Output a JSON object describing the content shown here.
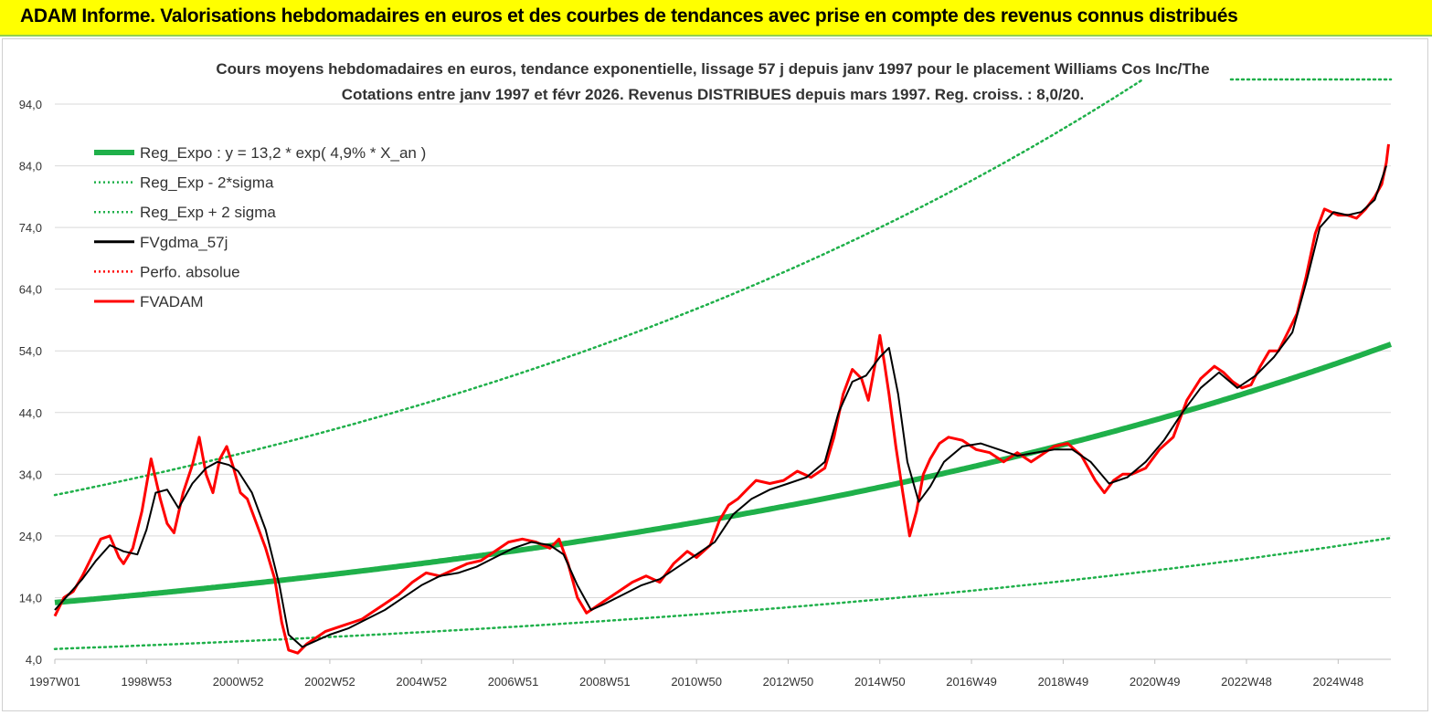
{
  "header": {
    "title": "ADAM Informe. Valorisations hebdomadaires en euros et des courbes de tendances avec prise en compte des revenus connus distribués"
  },
  "colors": {
    "header_bg": "#ffff00",
    "header_border": "#92d050",
    "reg_green": "#1fb04a",
    "smooth_black": "#000000",
    "price_red": "#ff0000",
    "grid": "#d9d9d9"
  },
  "chart_data": {
    "type": "line",
    "title_lines": [
      "Cours moyens hebdomadaires en euros, tendance exponentielle, lissage 57 j depuis janv 1997 pour le placement Williams Cos Inc/The",
      "Cotations entre janv 1997 et févr 2026. Revenus DISTRIBUES depuis mars 1997. Reg. croiss. : 8,0/20."
    ],
    "xlabel": "",
    "ylabel": "",
    "x_range": [
      1997.0,
      2026.15
    ],
    "ylim": [
      4.0,
      98.0
    ],
    "y_ticks": [
      "4,0",
      "14,0",
      "24,0",
      "34,0",
      "44,0",
      "54,0",
      "64,0",
      "74,0",
      "84,0",
      "94,0"
    ],
    "y_tick_values": [
      4,
      14,
      24,
      34,
      44,
      54,
      64,
      74,
      84,
      94
    ],
    "x_ticks": [
      "1997W01",
      "1998W53",
      "2000W52",
      "2002W52",
      "2004W52",
      "2006W51",
      "2008W51",
      "2010W50",
      "2012W50",
      "2014W50",
      "2016W49",
      "2018W49",
      "2020W49",
      "2022W48",
      "2024W48"
    ],
    "x_tick_values": [
      1997.0,
      1999.0,
      2001.0,
      2003.0,
      2005.0,
      2007.0,
      2009.0,
      2011.0,
      2013.0,
      2015.0,
      2017.0,
      2019.0,
      2021.0,
      2023.0,
      2025.0
    ],
    "grid": "horizontal",
    "legend_position": "top-left",
    "legend": [
      {
        "label": "Reg_Expo : y = 13,2 * exp( 4,9% *  X_an )",
        "color": "#1fb04a",
        "style": "thick"
      },
      {
        "label": "Reg_Exp - 2*sigma",
        "color": "#1fb04a",
        "style": "dotted"
      },
      {
        "label": "Reg_Exp + 2 sigma",
        "color": "#1fb04a",
        "style": "dotted"
      },
      {
        "label": "FVgdma_57j",
        "color": "#000000",
        "style": "solid"
      },
      {
        "label": "Perfo. absolue",
        "color": "#ff0000",
        "style": "dotted"
      },
      {
        "label": "FVADAM",
        "color": "#ff0000",
        "style": "solid"
      }
    ],
    "regression": {
      "a": 13.2,
      "rate": 0.049,
      "x0": 1997.0,
      "minus_2sigma_factor": 0.43,
      "plus_2sigma_factor": 2.32
    },
    "series": [
      {
        "name": "FVADAM",
        "x": [
          1997.0,
          1997.2,
          1997.4,
          1997.6,
          1997.8,
          1998.0,
          1998.2,
          1998.4,
          1998.5,
          1998.7,
          1998.9,
          1999.1,
          1999.3,
          1999.45,
          1999.6,
          1999.8,
          2000.0,
          2000.15,
          2000.3,
          2000.45,
          2000.6,
          2000.75,
          2000.9,
          2001.05,
          2001.2,
          2001.4,
          2001.6,
          2001.8,
          2001.95,
          2002.1,
          2002.3,
          2002.5,
          2002.7,
          2002.9,
          2003.1,
          2003.3,
          2003.5,
          2003.7,
          2003.9,
          2004.2,
          2004.5,
          2004.8,
          2005.1,
          2005.4,
          2005.7,
          2006.0,
          2006.3,
          2006.6,
          2006.9,
          2007.2,
          2007.5,
          2007.8,
          2008.0,
          2008.2,
          2008.4,
          2008.6,
          2008.8,
          2009.0,
          2009.3,
          2009.6,
          2009.9,
          2010.2,
          2010.5,
          2010.8,
          2011.0,
          2011.3,
          2011.5,
          2011.7,
          2011.9,
          2012.1,
          2012.3,
          2012.6,
          2012.9,
          2013.2,
          2013.5,
          2013.8,
          2014.0,
          2014.2,
          2014.4,
          2014.6,
          2014.75,
          2014.9,
          2015.0,
          2015.1,
          2015.2,
          2015.35,
          2015.5,
          2015.65,
          2015.8,
          2015.95,
          2016.1,
          2016.3,
          2016.5,
          2016.8,
          2017.1,
          2017.4,
          2017.7,
          2018.0,
          2018.3,
          2018.5,
          2018.8,
          2019.1,
          2019.4,
          2019.7,
          2019.9,
          2020.1,
          2020.3,
          2020.5,
          2020.8,
          2021.1,
          2021.4,
          2021.7,
          2022.0,
          2022.3,
          2022.5,
          2022.7,
          2022.9,
          2023.1,
          2023.3,
          2023.5,
          2023.7,
          2023.9,
          2024.1,
          2024.3,
          2024.5,
          2024.7,
          2024.85,
          2025.0,
          2025.2,
          2025.4,
          2025.6,
          2025.8,
          2025.95,
          2026.05,
          2026.1
        ],
        "values": [
          11.0,
          14.0,
          15.0,
          17.5,
          20.5,
          23.5,
          24.0,
          20.5,
          19.5,
          22.0,
          28.0,
          36.5,
          30.0,
          26.0,
          24.5,
          31.0,
          35.5,
          40.0,
          34.0,
          31.0,
          36.5,
          38.5,
          35.0,
          31.0,
          30.0,
          26.0,
          22.0,
          17.0,
          10.0,
          5.5,
          5.0,
          6.5,
          7.5,
          8.5,
          9.0,
          9.5,
          10.0,
          10.5,
          11.5,
          13.0,
          14.5,
          16.5,
          18.0,
          17.5,
          18.5,
          19.5,
          20.0,
          21.5,
          23.0,
          23.5,
          23.0,
          22.0,
          23.5,
          19.5,
          14.0,
          11.5,
          12.5,
          13.5,
          15.0,
          16.5,
          17.5,
          16.5,
          19.5,
          21.5,
          20.5,
          22.5,
          26.5,
          29.0,
          30.0,
          31.5,
          33.0,
          32.5,
          33.0,
          34.5,
          33.5,
          35.0,
          40.0,
          47.0,
          51.0,
          49.5,
          46.0,
          52.0,
          56.5,
          52.0,
          47.0,
          38.5,
          31.0,
          24.0,
          28.0,
          34.0,
          36.5,
          39.0,
          40.0,
          39.5,
          38.0,
          37.5,
          36.0,
          37.5,
          36.0,
          37.0,
          38.5,
          39.0,
          37.0,
          33.0,
          31.0,
          33.0,
          34.0,
          34.0,
          35.0,
          38.0,
          40.0,
          46.0,
          49.5,
          51.5,
          50.5,
          49.0,
          48.0,
          48.5,
          51.5,
          54.0,
          54.0,
          57.0,
          60.0,
          66.0,
          73.0,
          77.0,
          76.5,
          76.0,
          76.0,
          75.5,
          77.0,
          79.0,
          81.0,
          84.5,
          87.5
        ]
      },
      {
        "name": "FVgdma_57j",
        "x": [
          1997.0,
          1997.3,
          1997.6,
          1997.9,
          1998.2,
          1998.5,
          1998.8,
          1999.0,
          1999.2,
          1999.45,
          1999.7,
          2000.0,
          2000.3,
          2000.55,
          2000.8,
          2001.0,
          2001.3,
          2001.6,
          2001.9,
          2002.1,
          2002.4,
          2002.7,
          2003.0,
          2003.4,
          2003.8,
          2004.2,
          2004.6,
          2005.0,
          2005.4,
          2005.8,
          2006.2,
          2006.6,
          2007.0,
          2007.4,
          2007.8,
          2008.1,
          2008.4,
          2008.7,
          2009.0,
          2009.4,
          2009.8,
          2010.2,
          2010.6,
          2011.0,
          2011.4,
          2011.8,
          2012.2,
          2012.6,
          2013.0,
          2013.4,
          2013.8,
          2014.1,
          2014.4,
          2014.7,
          2015.0,
          2015.2,
          2015.4,
          2015.6,
          2015.85,
          2016.1,
          2016.4,
          2016.8,
          2017.2,
          2017.6,
          2018.0,
          2018.4,
          2018.8,
          2019.2,
          2019.6,
          2020.0,
          2020.4,
          2020.8,
          2021.2,
          2021.6,
          2022.0,
          2022.4,
          2022.8,
          2023.2,
          2023.6,
          2024.0,
          2024.3,
          2024.6,
          2024.9,
          2025.2,
          2025.5,
          2025.8,
          2026.05
        ],
        "values": [
          12.0,
          14.5,
          17.0,
          20.0,
          22.5,
          21.5,
          21.0,
          25.0,
          31.0,
          31.5,
          28.5,
          32.5,
          35.0,
          36.0,
          35.5,
          34.5,
          31.0,
          25.0,
          16.0,
          8.0,
          6.0,
          7.0,
          8.0,
          9.0,
          10.5,
          12.0,
          14.0,
          16.0,
          17.5,
          18.0,
          19.0,
          20.5,
          22.0,
          23.0,
          22.5,
          21.0,
          16.0,
          12.0,
          13.0,
          14.5,
          16.0,
          17.0,
          19.0,
          21.0,
          23.0,
          27.5,
          30.0,
          31.5,
          32.5,
          33.5,
          36.0,
          44.0,
          49.0,
          50.0,
          53.0,
          54.5,
          47.0,
          36.0,
          29.5,
          32.0,
          36.0,
          38.5,
          39.0,
          38.0,
          37.0,
          37.5,
          38.0,
          38.0,
          36.0,
          32.5,
          33.5,
          36.0,
          39.5,
          44.0,
          48.0,
          50.5,
          48.0,
          50.0,
          53.0,
          57.0,
          65.0,
          74.0,
          76.5,
          76.0,
          76.5,
          78.5,
          84.0
        ]
      }
    ]
  }
}
